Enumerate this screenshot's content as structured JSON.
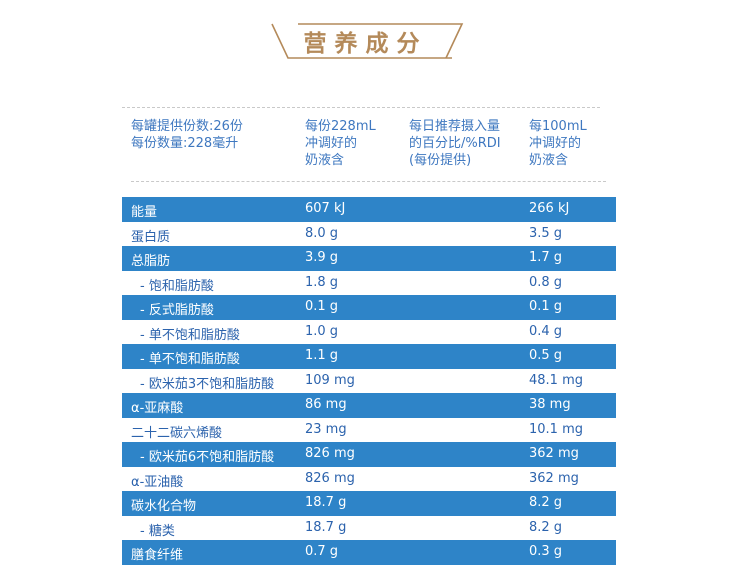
{
  "title": "营养成分",
  "colors": {
    "title_gold": "#b48a5a",
    "row_blue": "#2e84c8",
    "text_blue": "#3f78c0"
  },
  "header": {
    "col1_line1": "每罐提供份数:26份",
    "col1_line2": "每份数量:228毫升",
    "col2_line1": "每份228mL",
    "col2_line2": "冲调好的",
    "col2_line3": "奶液含",
    "col3_line1": "每日推荐摄入量",
    "col3_line2": "的百分比/%RDI",
    "col3_line3": "(每份提供)",
    "col4_line1": "每100mL",
    "col4_line2": "冲调好的",
    "col4_line3": "奶液含"
  },
  "rows": [
    {
      "name": "能量",
      "per_serving": "607 kJ",
      "per_100ml": "266 kJ"
    },
    {
      "name": "蛋白质",
      "per_serving": "8.0 g",
      "per_100ml": "3.5 g"
    },
    {
      "name": "总脂肪",
      "per_serving": "3.9 g",
      "per_100ml": "1.7 g"
    },
    {
      "name": "- 饱和脂肪酸",
      "per_serving": "1.8 g",
      "per_100ml": "0.8 g"
    },
    {
      "name": "- 反式脂肪酸",
      "per_serving": "0.1 g",
      "per_100ml": "0.1 g"
    },
    {
      "name": "- 单不饱和脂肪酸",
      "per_serving": "1.0 g",
      "per_100ml": "0.4 g"
    },
    {
      "name": "- 单不饱和脂肪酸",
      "per_serving": "1.1 g",
      "per_100ml": "0.5 g"
    },
    {
      "name": "- 欧米茄3不饱和脂肪酸",
      "per_serving": "109 mg",
      "per_100ml": "48.1 mg"
    },
    {
      "name": "α-亚麻酸",
      "per_serving": "86 mg",
      "per_100ml": "38 mg"
    },
    {
      "name": "二十二碳六烯酸",
      "per_serving": "23 mg",
      "per_100ml": "10.1 mg"
    },
    {
      "name": "- 欧米茄6不饱和脂肪酸",
      "per_serving": "826 mg",
      "per_100ml": "362 mg"
    },
    {
      "name": "α-亚油酸",
      "per_serving": "826 mg",
      "per_100ml": "362 mg"
    },
    {
      "name": "碳水化合物",
      "per_serving": "18.7 g",
      "per_100ml": "8.2 g"
    },
    {
      "name": "- 糖类",
      "per_serving": "18.7 g",
      "per_100ml": "8.2 g"
    },
    {
      "name": "膳食纤维",
      "per_serving": "0.7 g",
      "per_100ml": "0.3 g"
    }
  ]
}
